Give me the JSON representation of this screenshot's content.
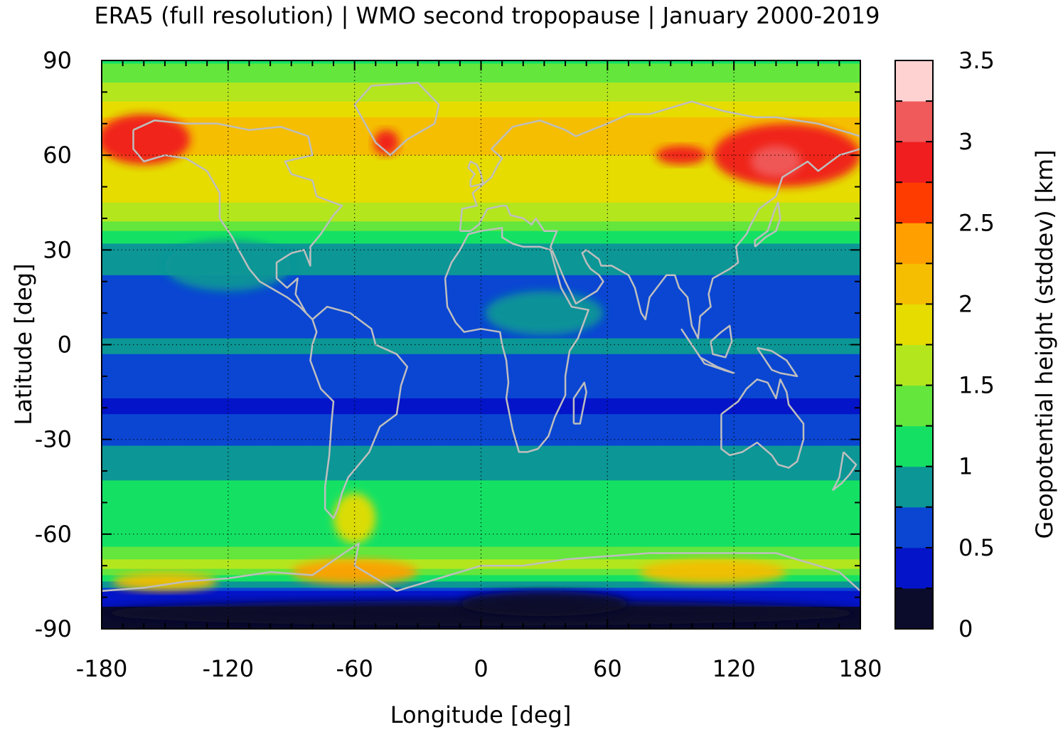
{
  "chart_data": {
    "type": "heatmap",
    "title": "ERA5 (full resolution) | WMO second tropopause | January 2000-2019",
    "xlabel": "Longitude [deg]",
    "ylabel": "Latitude [deg]",
    "colorbar_label": "Geopotential height (stddev) [km]",
    "xlim": [
      -180,
      180
    ],
    "ylim": [
      -90,
      90
    ],
    "x_ticks": [
      -180,
      -120,
      -60,
      0,
      60,
      120,
      180
    ],
    "y_ticks": [
      90,
      60,
      30,
      0,
      -30,
      -60,
      -90
    ],
    "x_tick_labels": [
      "-180",
      "-120",
      "-60",
      "0",
      "60",
      "120",
      "180"
    ],
    "y_tick_labels": [
      "90",
      "60",
      "30",
      "0",
      "-30",
      "-60",
      "-90"
    ],
    "colorbar_range": [
      0,
      3.5
    ],
    "colorbar_ticks": [
      0,
      0.5,
      1,
      1.5,
      2,
      2.5,
      3,
      3.5
    ],
    "colorbar_tick_labels": [
      "0",
      "0.5",
      "1",
      "1.5",
      "2",
      "2.5",
      "3",
      "3.5"
    ],
    "colorbar_colors": [
      "#0b0c2c",
      "#0414c8",
      "#0a46d2",
      "#0c9696",
      "#14e164",
      "#64e63c",
      "#b4e61e",
      "#e6dc00",
      "#f5be00",
      "#ffa000",
      "#ff3c00",
      "#f01e1e",
      "#f05a5a",
      "#ffd2d2"
    ],
    "grid": true,
    "coastlines_color": "#bebebe",
    "zonal_profile": [
      {
        "lat": 90,
        "value": 1.2
      },
      {
        "lat": 80,
        "value": 1.6
      },
      {
        "lat": 70,
        "value": 2.1
      },
      {
        "lat": 60,
        "value": 2.0
      },
      {
        "lat": 50,
        "value": 1.9
      },
      {
        "lat": 40,
        "value": 1.6
      },
      {
        "lat": 35,
        "value": 1.1
      },
      {
        "lat": 30,
        "value": 0.9
      },
      {
        "lat": 20,
        "value": 0.7
      },
      {
        "lat": 10,
        "value": 0.55
      },
      {
        "lat": 0,
        "value": 0.8
      },
      {
        "lat": -10,
        "value": 0.6
      },
      {
        "lat": -20,
        "value": 0.45
      },
      {
        "lat": -30,
        "value": 0.7
      },
      {
        "lat": -40,
        "value": 0.9
      },
      {
        "lat": -50,
        "value": 1.2
      },
      {
        "lat": -60,
        "value": 1.0
      },
      {
        "lat": -70,
        "value": 1.6
      },
      {
        "lat": -80,
        "value": 0.3
      },
      {
        "lat": -90,
        "value": 0.1
      }
    ]
  }
}
